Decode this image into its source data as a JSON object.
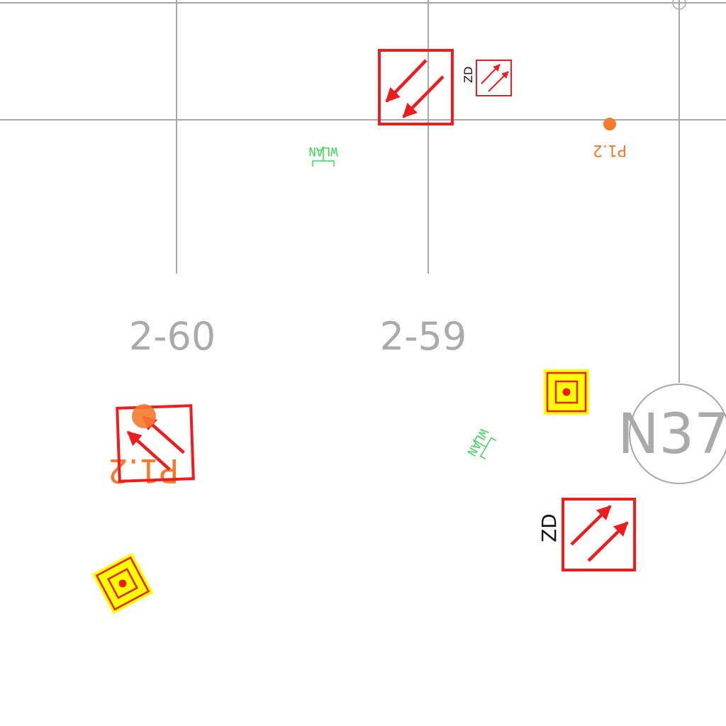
{
  "colors": {
    "grid": "#a8a8a8",
    "exit_red": "#ee1c1c",
    "wlan_green": "#3dd65a",
    "point_orange": "#f47a2c",
    "alarm_yellow": "#ffff00",
    "text_black": "#111111"
  },
  "grid_labels": {
    "col_1": "2-60",
    "col_2": "2-59",
    "axis_bubble": "N37"
  },
  "symbols": {
    "wlan_1": {
      "label": "WLAN",
      "icon": "wlan-antenna-icon"
    },
    "wlan_2": {
      "label": "WLAN",
      "icon": "wlan-antenna-icon"
    },
    "point_1": {
      "label": "P1.2",
      "icon": "measurement-point-icon"
    },
    "point_2": {
      "label": "P1.2",
      "icon": "measurement-point-icon"
    },
    "exit_1": {
      "icon": "escape-route-arrow-icon"
    },
    "exit_2": {
      "tag": "ZD",
      "icon": "escape-route-arrow-icon"
    },
    "exit_3": {
      "icon": "escape-route-arrow-icon"
    },
    "exit_4": {
      "tag": "ZD",
      "icon": "escape-route-arrow-icon"
    },
    "alarm_1": {
      "icon": "fire-alarm-button-icon"
    },
    "alarm_2": {
      "icon": "fire-alarm-button-icon"
    }
  }
}
